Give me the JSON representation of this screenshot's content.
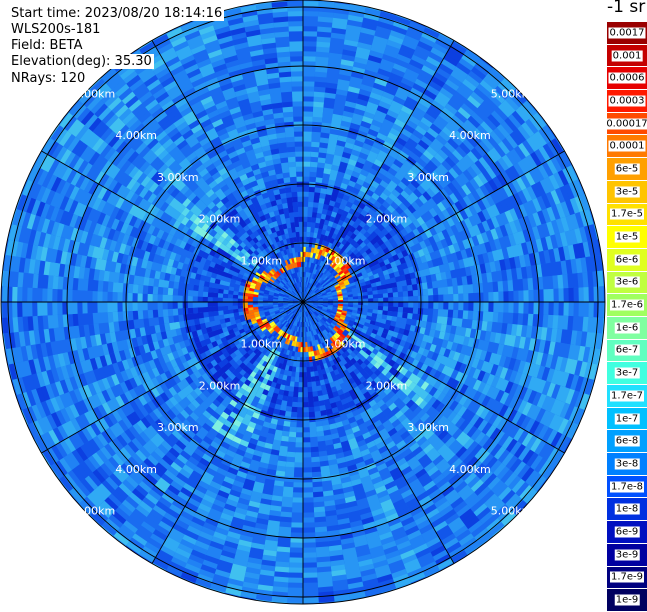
{
  "header": {
    "start_time": "Start time: 2023/08/20 18:14:16",
    "instrument": "WLS200s-181",
    "field": "Field: BETA",
    "elevation": "Elevation(deg): 35.30",
    "nrays": "NRays: 120"
  },
  "colorbar": {
    "unit": "-1 sr",
    "ticks": [
      "0.0017",
      "0.001",
      "0.0006",
      "0.0003",
      "0.00017",
      "0.0001",
      "6e-5",
      "3e-5",
      "1.7e-5",
      "1e-5",
      "6e-6",
      "3e-6",
      "1.7e-6",
      "1e-6",
      "6e-7",
      "3e-7",
      "1.7e-7",
      "1e-7",
      "6e-8",
      "3e-8",
      "1.7e-8",
      "1e-8",
      "6e-9",
      "3e-9",
      "1.7e-9",
      "1e-9"
    ],
    "colors": [
      "#9a0000",
      "#c40000",
      "#e60000",
      "#ff1a00",
      "#ff4a00",
      "#ff7a00",
      "#ffa000",
      "#ffc400",
      "#ffe000",
      "#ffff00",
      "#e0ff20",
      "#c0ff40",
      "#a0ff60",
      "#80ffa0",
      "#60ffc0",
      "#40ffe0",
      "#20e0ff",
      "#00c0ff",
      "#00a0ff",
      "#0080ff",
      "#0050ff",
      "#0030e0",
      "#0010c0",
      "#0000a0",
      "#000080",
      "#000060"
    ]
  },
  "chart_data": {
    "type": "heatmap",
    "projection": "polar",
    "field": "BETA",
    "n_rays": 120,
    "range_rings_km": [
      1.0,
      2.0,
      3.0,
      4.0,
      5.0
    ],
    "range_labels": [
      "1.00km",
      "2.00km",
      "3.00km",
      "4.00km",
      "5.00km"
    ],
    "azimuth_spokes_deg": [
      0,
      30,
      60,
      90,
      120,
      150,
      180,
      210,
      240,
      270,
      300,
      330
    ],
    "max_range_km": 5.3,
    "background_level": "1e-8 to 1e-7",
    "near_field_ring_level": "1e-5 to 1e-4"
  }
}
